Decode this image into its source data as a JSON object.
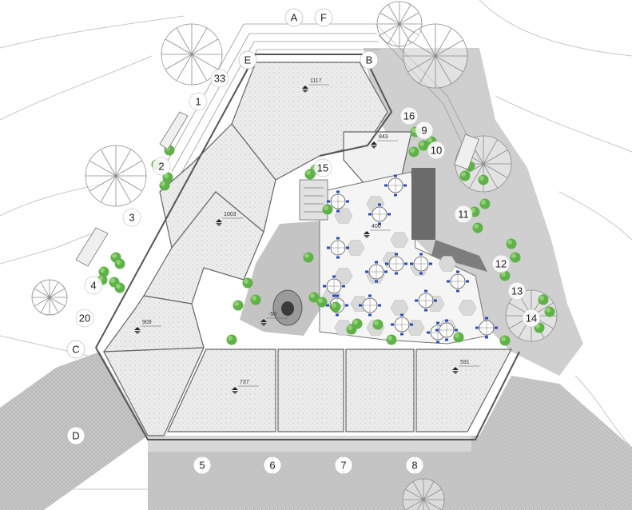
{
  "grid_axes": {
    "letters": [
      "A",
      "F",
      "E",
      "B",
      "C",
      "D"
    ],
    "numbers": [
      "5",
      "6",
      "7",
      "8"
    ]
  },
  "callouts": [
    "33",
    "1",
    "2",
    "3",
    "4",
    "20",
    "16",
    "9",
    "10",
    "15",
    "11",
    "12",
    "13",
    "14"
  ],
  "elevations": [
    "1117",
    "843",
    "1003",
    "400",
    "909",
    "-50",
    "737",
    "591"
  ],
  "colors": {
    "roof_fill": "#e9e9e9",
    "court_fill": "#f4f4f4",
    "shade_fill": "#c9c9c9",
    "paving_fill": "#bdbdbd",
    "tree_green": "#5fb14a",
    "table_blue": "#2c4db8",
    "line": "#6b6b6b"
  },
  "icons": [
    "level-marker-icon",
    "tree-canopy-icon",
    "shrub-icon",
    "cafe-table-icon",
    "stair-icon"
  ]
}
